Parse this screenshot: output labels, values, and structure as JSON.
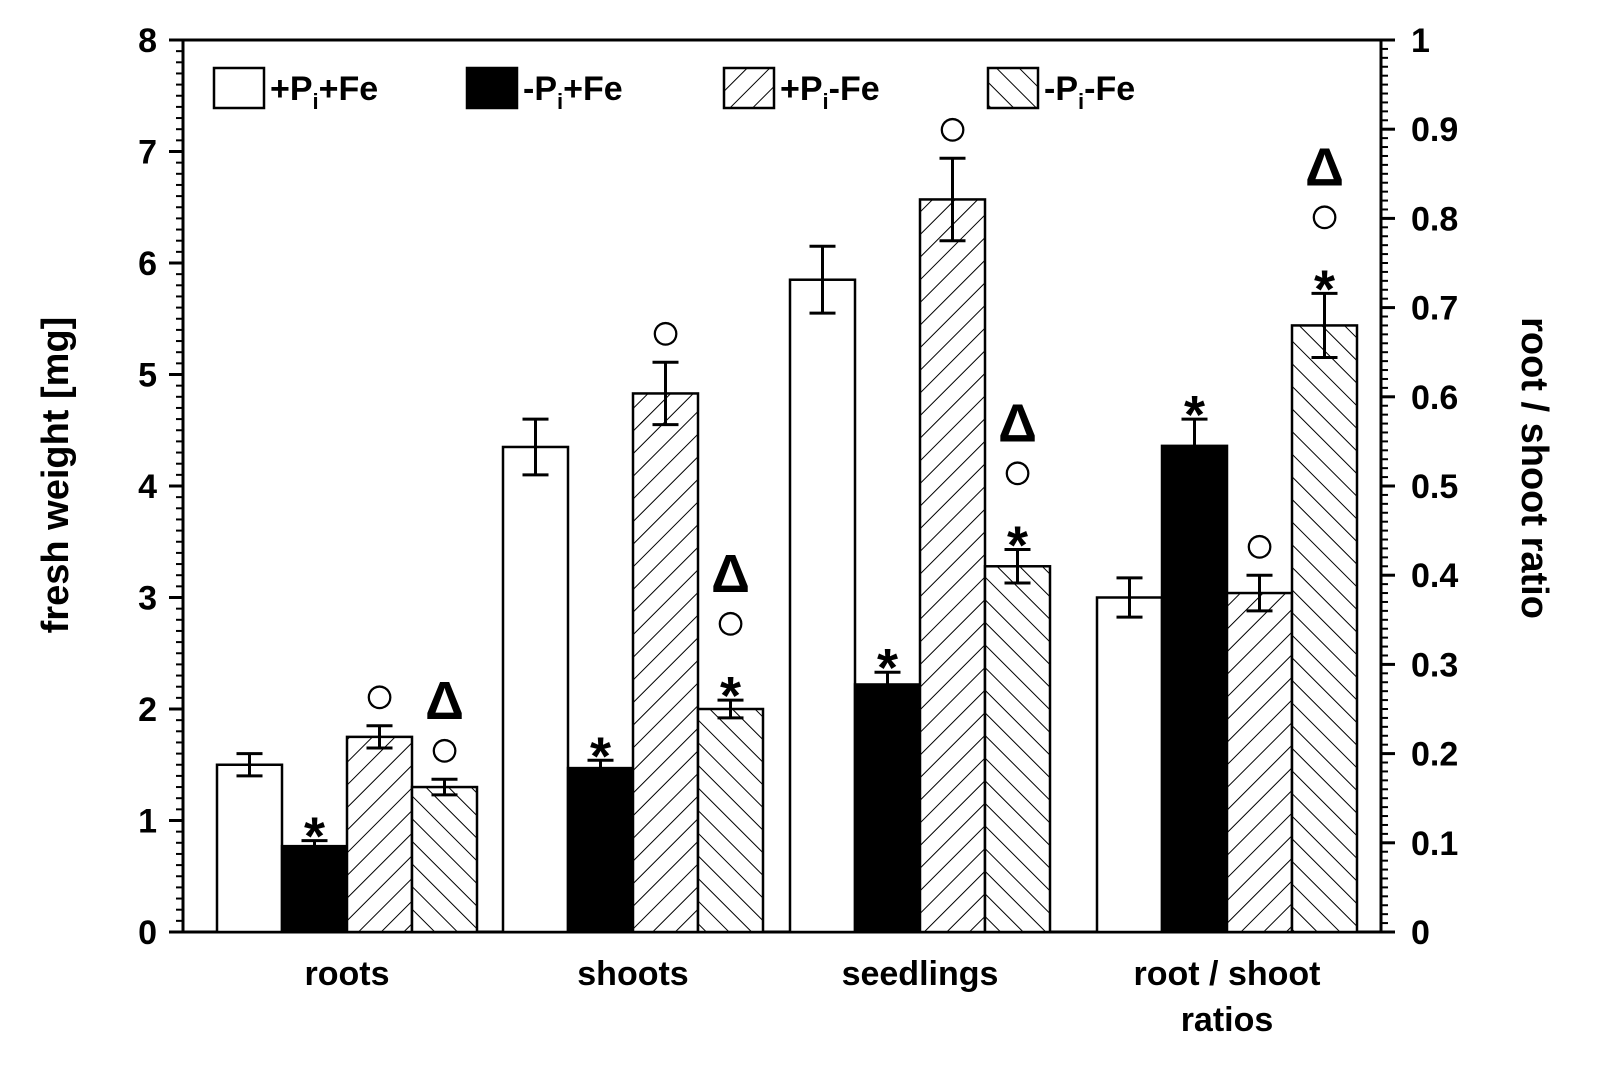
{
  "chart_data": {
    "type": "bar",
    "categories": [
      "roots",
      "shoots",
      "seedlings",
      "root / shoot ratios"
    ],
    "category_lines": [
      [
        "roots"
      ],
      [
        "shoots"
      ],
      [
        "seedlings"
      ],
      [
        "root / shoot",
        "ratios"
      ]
    ],
    "left_axis": {
      "label": "fresh weight [mg]",
      "ylim": [
        0,
        8
      ],
      "ticks": [
        "0",
        "1",
        "2",
        "3",
        "4",
        "5",
        "6",
        "7",
        "8"
      ]
    },
    "right_axis": {
      "label": "root / shoot ratio",
      "ylim": [
        0,
        1
      ],
      "ticks": [
        "0",
        "0.1",
        "0.2",
        "0.3",
        "0.4",
        "0.5",
        "0.6",
        "0.7",
        "0.8",
        "0.9",
        "1"
      ]
    },
    "series": [
      {
        "name": "+Pi+Fe",
        "legend_parts": [
          "+P",
          "i",
          "+Fe"
        ],
        "fill": "white",
        "values": [
          1.5,
          4.35,
          5.85,
          0.375
        ],
        "errors": [
          0.1,
          0.25,
          0.3,
          0.022
        ],
        "markers": [
          "",
          "",
          "",
          ""
        ]
      },
      {
        "name": "-Pi+Fe",
        "legend_parts": [
          "-P",
          "i",
          "+Fe"
        ],
        "fill": "black",
        "values": [
          0.77,
          1.47,
          2.22,
          0.545
        ],
        "errors": [
          0.05,
          0.07,
          0.11,
          0.03
        ],
        "markers": [
          "*",
          "*",
          "*",
          "*"
        ]
      },
      {
        "name": "+Pi-Fe",
        "legend_parts": [
          "+P",
          "i",
          "-Fe"
        ],
        "fill": "hatch-forward",
        "values": [
          1.75,
          4.83,
          6.57,
          0.38
        ],
        "errors": [
          0.1,
          0.28,
          0.37,
          0.02
        ],
        "markers": [
          "○",
          "○",
          "○",
          "○"
        ]
      },
      {
        "name": "-Pi-Fe",
        "legend_parts": [
          "-P",
          "i",
          "-Fe"
        ],
        "fill": "hatch-back",
        "values": [
          1.3,
          2.0,
          3.28,
          0.68
        ],
        "errors": [
          0.07,
          0.08,
          0.15,
          0.036
        ],
        "markers": [
          "○Δ",
          "*○Δ",
          "*○Δ",
          "*○Δ"
        ]
      }
    ],
    "ratio_category_index": 3,
    "legend_position": "top",
    "colors": {
      "bar_edge": "#000000",
      "background": "#ffffff"
    }
  }
}
